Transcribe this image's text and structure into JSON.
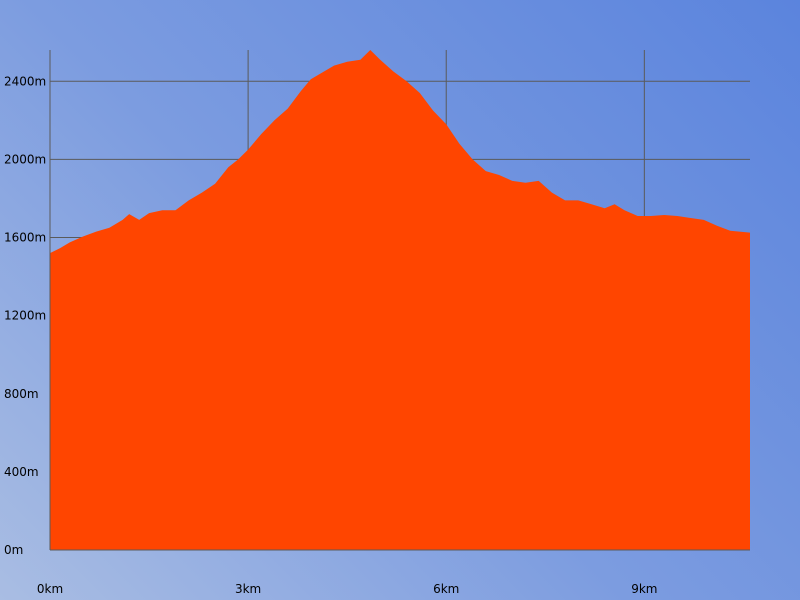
{
  "chart_data": {
    "type": "area",
    "title": "",
    "xlabel": "",
    "ylabel": "",
    "xlim": [
      0,
      10.6
    ],
    "ylim": [
      0,
      2560
    ],
    "grid": true,
    "fill_color": "#ff4500",
    "grid_color": "#5a5a5a",
    "background": "blue-gradient",
    "x_ticks": [
      {
        "value": 0,
        "label": "0km"
      },
      {
        "value": 3,
        "label": "3km"
      },
      {
        "value": 6,
        "label": "6km"
      },
      {
        "value": 9,
        "label": "9km"
      }
    ],
    "y_ticks": [
      {
        "value": 0,
        "label": "0m"
      },
      {
        "value": 400,
        "label": "400m"
      },
      {
        "value": 800,
        "label": "800m"
      },
      {
        "value": 1200,
        "label": "1200m"
      },
      {
        "value": 1600,
        "label": "1600m"
      },
      {
        "value": 2000,
        "label": "2000m"
      },
      {
        "value": 2400,
        "label": "2400m"
      }
    ],
    "series": [
      {
        "x": [
          0,
          0.15,
          0.3,
          0.5,
          0.7,
          0.9,
          1.1,
          1.2,
          1.35,
          1.5,
          1.7,
          1.9,
          2.1,
          2.3,
          2.5,
          2.7,
          2.85,
          3.0,
          3.2,
          3.4,
          3.6,
          3.8,
          3.95,
          4.1,
          4.3,
          4.5,
          4.7,
          4.85,
          5.0,
          5.2,
          5.4,
          5.6,
          5.8,
          6.0,
          6.2,
          6.4,
          6.6,
          6.8,
          7.0,
          7.2,
          7.4,
          7.6,
          7.8,
          8.0,
          8.2,
          8.4,
          8.55,
          8.7,
          8.9,
          9.1,
          9.3,
          9.5,
          9.7,
          9.9,
          10.1,
          10.3,
          10.6
        ],
        "y": [
          1520,
          1545,
          1575,
          1605,
          1630,
          1650,
          1690,
          1720,
          1690,
          1725,
          1740,
          1740,
          1790,
          1830,
          1875,
          1960,
          2000,
          2050,
          2130,
          2200,
          2260,
          2350,
          2410,
          2440,
          2480,
          2500,
          2510,
          2560,
          2510,
          2450,
          2400,
          2340,
          2250,
          2180,
          2080,
          2000,
          1940,
          1920,
          1890,
          1880,
          1890,
          1830,
          1790,
          1790,
          1770,
          1750,
          1770,
          1740,
          1710,
          1710,
          1715,
          1710,
          1700,
          1690,
          1660,
          1635,
          1625
        ]
      }
    ]
  }
}
